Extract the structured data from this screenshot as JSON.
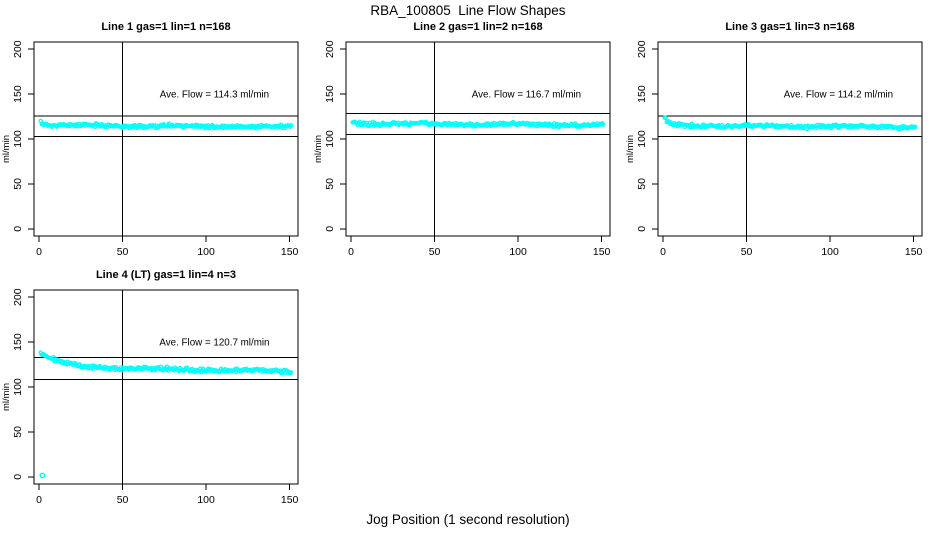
{
  "page_title": "RBA_100805  Line Flow Shapes",
  "xlabel_shared": "Jog Position (1 second resolution)",
  "colors": {
    "points": "#00ffff",
    "lines": "#000000",
    "text": "#000000",
    "background": "#ffffff"
  },
  "chart_data": [
    {
      "type": "scatter",
      "title": "Line 1 gas=1 lin=1 n=168",
      "n": 168,
      "ave_flow": 114.3,
      "annotation": "Ave. Flow =  114.3  ml/min",
      "ylabel": "ml/min",
      "xlabel": "",
      "xticks": [
        0,
        50,
        100,
        150
      ],
      "yticks": [
        0,
        50,
        100,
        150,
        200
      ],
      "xlim": [
        -3,
        155
      ],
      "ylim": [
        -8,
        208
      ],
      "vline": 50,
      "hlines": [
        125.7,
        102.9
      ],
      "series": {
        "x_start": 1,
        "x_end": 151,
        "step": 0.6,
        "start_y": 119.5,
        "settle_y": 115.3,
        "end_y": 113.4,
        "tau": 2.5,
        "noise": 2.3,
        "seed": 11
      },
      "outliers": []
    },
    {
      "type": "scatter",
      "title": "Line 2 gas=1 lin=2 n=168",
      "n": 168,
      "ave_flow": 116.7,
      "annotation": "Ave. Flow =  116.7  ml/min",
      "ylabel": "ml/min",
      "xlabel": "",
      "xticks": [
        0,
        50,
        100,
        150
      ],
      "yticks": [
        0,
        50,
        100,
        150,
        200
      ],
      "xlim": [
        -3,
        155
      ],
      "ylim": [
        -8,
        208
      ],
      "vline": 50,
      "hlines": [
        128.4,
        105.0
      ],
      "series": {
        "x_start": 1,
        "x_end": 151,
        "step": 0.6,
        "start_y": 120.5,
        "settle_y": 117.3,
        "end_y": 115.4,
        "tau": 2.5,
        "noise": 2.3,
        "seed": 22
      },
      "outliers": []
    },
    {
      "type": "scatter",
      "title": "Line 3 gas=1 lin=3 n=168",
      "n": 168,
      "ave_flow": 114.2,
      "annotation": "Ave. Flow =  114.2  ml/min",
      "ylabel": "ml/min",
      "xlabel": "",
      "xticks": [
        0,
        50,
        100,
        150
      ],
      "yticks": [
        0,
        50,
        100,
        150,
        200
      ],
      "xlim": [
        -3,
        155
      ],
      "ylim": [
        -8,
        208
      ],
      "vline": 50,
      "hlines": [
        125.6,
        102.8
      ],
      "series": {
        "x_start": 1,
        "x_end": 151,
        "step": 0.6,
        "start_y": 123.5,
        "settle_y": 115.2,
        "end_y": 113.2,
        "tau": 2.2,
        "noise": 2.3,
        "seed": 33
      },
      "outliers": []
    },
    {
      "type": "scatter",
      "title": "Line 4 (LT) gas=1 lin=4 n=3",
      "n": 3,
      "ave_flow": 120.7,
      "annotation": "Ave. Flow =  120.7  ml/min",
      "ylabel": "ml/min",
      "xlabel": "",
      "xticks": [
        0,
        50,
        100,
        150
      ],
      "yticks": [
        0,
        50,
        100,
        150,
        200
      ],
      "xlim": [
        -3,
        155
      ],
      "ylim": [
        -8,
        208
      ],
      "vline": 50,
      "hlines": [
        132.8,
        108.6
      ],
      "series": {
        "x_start": 1,
        "x_end": 151,
        "step": 0.6,
        "start_y": 137.0,
        "settle_y": 121.5,
        "end_y": 117.8,
        "tau": 14,
        "noise": 2.6,
        "seed": 44
      },
      "outliers": [
        [
          2,
          1.5
        ]
      ]
    }
  ]
}
